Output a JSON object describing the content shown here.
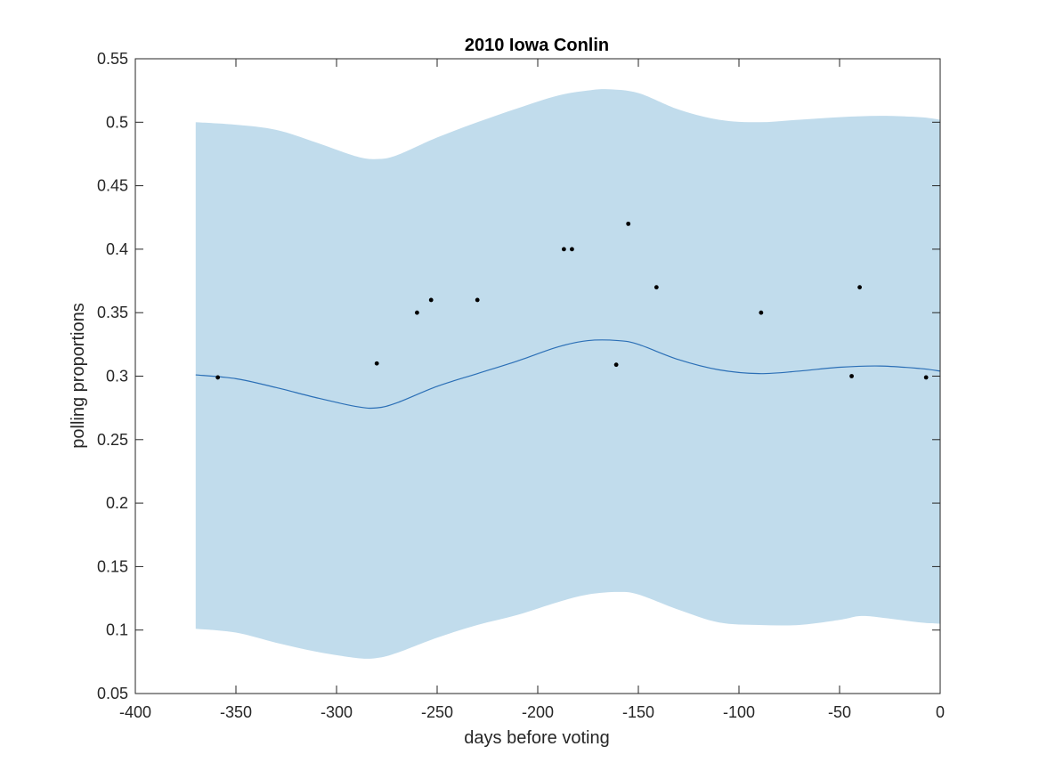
{
  "chart_data": {
    "type": "scatter",
    "title": "2010 Iowa Conlin",
    "xlabel": "days before voting",
    "ylabel": "polling proportions",
    "xlim": [
      -400,
      0
    ],
    "ylim": [
      0.05,
      0.55
    ],
    "xticks": [
      -400,
      -350,
      -300,
      -250,
      -200,
      -150,
      -100,
      -50,
      0
    ],
    "yticks": [
      0.05,
      0.1,
      0.15,
      0.2,
      0.25,
      0.3,
      0.35,
      0.4,
      0.45,
      0.5,
      0.55
    ],
    "xtick_labels": [
      "-400",
      "-350",
      "-300",
      "-250",
      "-200",
      "-150",
      "-100",
      "-50",
      "0"
    ],
    "ytick_labels": [
      "0.05",
      "0.1",
      "0.15",
      "0.2",
      "0.25",
      "0.3",
      "0.35",
      "0.4",
      "0.45",
      "0.5",
      "0.55"
    ],
    "grid": false,
    "band_color": "#c1dcec",
    "line_color": "#2b6fb6",
    "point_color": "#000000",
    "points": [
      {
        "x": -359,
        "y": 0.299
      },
      {
        "x": -280,
        "y": 0.31
      },
      {
        "x": -260,
        "y": 0.35
      },
      {
        "x": -253,
        "y": 0.36
      },
      {
        "x": -230,
        "y": 0.36
      },
      {
        "x": -187,
        "y": 0.4
      },
      {
        "x": -183,
        "y": 0.4
      },
      {
        "x": -161,
        "y": 0.309
      },
      {
        "x": -155,
        "y": 0.42
      },
      {
        "x": -141,
        "y": 0.37
      },
      {
        "x": -89,
        "y": 0.35
      },
      {
        "x": -44,
        "y": 0.3
      },
      {
        "x": -40,
        "y": 0.37
      },
      {
        "x": -7,
        "y": 0.299
      }
    ],
    "mean_line": {
      "x": [
        -370,
        -350,
        -330,
        -310,
        -290,
        -280,
        -270,
        -250,
        -230,
        -210,
        -190,
        -175,
        -160,
        -150,
        -130,
        -110,
        -90,
        -70,
        -50,
        -30,
        -10,
        0
      ],
      "y": [
        0.301,
        0.298,
        0.291,
        0.283,
        0.276,
        0.275,
        0.279,
        0.292,
        0.302,
        0.312,
        0.323,
        0.328,
        0.328,
        0.325,
        0.313,
        0.305,
        0.302,
        0.304,
        0.307,
        0.308,
        0.306,
        0.304
      ]
    },
    "band_upper": {
      "x": [
        -370,
        -350,
        -330,
        -310,
        -290,
        -280,
        -270,
        -250,
        -230,
        -210,
        -190,
        -175,
        -165,
        -150,
        -130,
        -110,
        -90,
        -70,
        -50,
        -30,
        -10,
        0
      ],
      "y": [
        0.5,
        0.498,
        0.494,
        0.484,
        0.473,
        0.471,
        0.474,
        0.488,
        0.5,
        0.511,
        0.521,
        0.525,
        0.526,
        0.523,
        0.51,
        0.502,
        0.5,
        0.502,
        0.504,
        0.505,
        0.504,
        0.502
      ]
    },
    "band_lower": {
      "x": [
        -370,
        -350,
        -330,
        -310,
        -290,
        -280,
        -270,
        -250,
        -230,
        -210,
        -190,
        -175,
        -160,
        -150,
        -130,
        -110,
        -90,
        -70,
        -50,
        -40,
        -30,
        -10,
        0
      ],
      "y": [
        0.101,
        0.098,
        0.09,
        0.083,
        0.078,
        0.078,
        0.082,
        0.094,
        0.104,
        0.112,
        0.122,
        0.128,
        0.13,
        0.128,
        0.116,
        0.106,
        0.104,
        0.104,
        0.108,
        0.111,
        0.11,
        0.106,
        0.105
      ]
    }
  }
}
